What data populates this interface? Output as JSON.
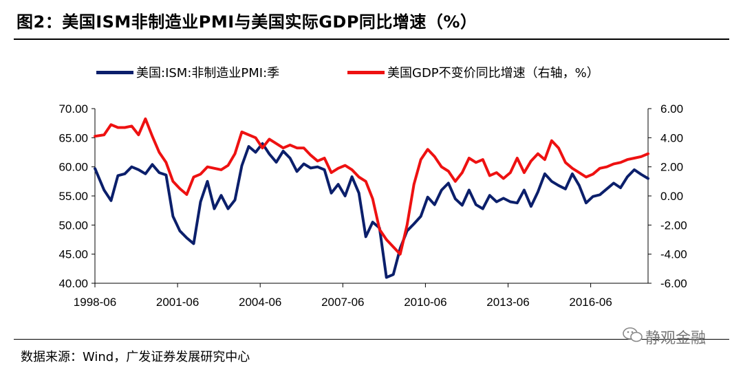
{
  "header": {
    "title": "图2：美国ISM非制造业PMI与美国实际GDP同比增速（%）"
  },
  "footer": {
    "source": "数据来源：Wind，广发证券发展研究中心",
    "watermark": "静观金融"
  },
  "colors": {
    "pmi": "#0b1f6b",
    "gdp": "#ee1111",
    "axis": "#000000"
  },
  "chart_data": {
    "type": "line",
    "title": "",
    "xlabel": "",
    "x_tick_labels": [
      "1998-06",
      "2001-06",
      "2004-06",
      "2007-06",
      "2010-06",
      "2013-06",
      "2016-06"
    ],
    "x_tick_years": [
      1998.4167,
      2001.4167,
      2004.4167,
      2007.4167,
      2010.4167,
      2013.4167,
      2016.4167
    ],
    "x_range": [
      1998.4167,
      2018.5
    ],
    "y_left": {
      "range": [
        40,
        70
      ],
      "ticks": [
        "40.00",
        "45.00",
        "50.00",
        "55.00",
        "60.00",
        "65.00",
        "70.00"
      ],
      "tick_values": [
        40,
        45,
        50,
        55,
        60,
        65,
        70
      ]
    },
    "y_right": {
      "range": [
        -6,
        6
      ],
      "ticks": [
        "-6.00",
        "-4.00",
        "-2.00",
        "0.00",
        "2.00",
        "4.00",
        "6.00"
      ],
      "tick_values": [
        -6,
        -4,
        -2,
        0,
        2,
        4,
        6
      ]
    },
    "legend_placement": "top",
    "grid": false,
    "series": [
      {
        "name": "美国:ISM:非制造业PMI:季",
        "axis": "left",
        "points": [
          [
            1998.42,
            59.7
          ],
          [
            1998.75,
            56.0
          ],
          [
            1999.0,
            54.2
          ],
          [
            1999.25,
            58.5
          ],
          [
            1999.5,
            58.8
          ],
          [
            1999.75,
            60.0
          ],
          [
            2000.0,
            59.5
          ],
          [
            2000.25,
            58.8
          ],
          [
            2000.5,
            60.4
          ],
          [
            2000.75,
            59.0
          ],
          [
            2001.0,
            58.6
          ],
          [
            2001.25,
            51.5
          ],
          [
            2001.5,
            49.0
          ],
          [
            2001.75,
            47.8
          ],
          [
            2002.0,
            46.8
          ],
          [
            2002.25,
            54.0
          ],
          [
            2002.5,
            57.5
          ],
          [
            2002.75,
            52.8
          ],
          [
            2003.0,
            55.1
          ],
          [
            2003.25,
            52.8
          ],
          [
            2003.5,
            54.3
          ],
          [
            2003.75,
            60.2
          ],
          [
            2004.0,
            63.5
          ],
          [
            2004.25,
            62.5
          ],
          [
            2004.5,
            64.0
          ],
          [
            2004.75,
            62.2
          ],
          [
            2005.0,
            60.8
          ],
          [
            2005.25,
            62.7
          ],
          [
            2005.5,
            61.5
          ],
          [
            2005.75,
            59.2
          ],
          [
            2006.0,
            60.5
          ],
          [
            2006.25,
            59.8
          ],
          [
            2006.5,
            60.0
          ],
          [
            2006.75,
            59.5
          ],
          [
            2007.0,
            55.5
          ],
          [
            2007.25,
            57.0
          ],
          [
            2007.5,
            55.0
          ],
          [
            2007.75,
            58.3
          ],
          [
            2008.0,
            55.5
          ],
          [
            2008.25,
            48.0
          ],
          [
            2008.5,
            50.5
          ],
          [
            2008.75,
            49.5
          ],
          [
            2009.0,
            41.0
          ],
          [
            2009.25,
            41.5
          ],
          [
            2009.5,
            46.0
          ],
          [
            2009.75,
            49.0
          ],
          [
            2010.0,
            50.2
          ],
          [
            2010.25,
            51.5
          ],
          [
            2010.5,
            54.8
          ],
          [
            2010.75,
            53.5
          ],
          [
            2011.0,
            56.0
          ],
          [
            2011.25,
            57.2
          ],
          [
            2011.5,
            54.5
          ],
          [
            2011.75,
            53.4
          ],
          [
            2012.0,
            56.0
          ],
          [
            2012.25,
            53.5
          ],
          [
            2012.5,
            52.8
          ],
          [
            2012.75,
            55.1
          ],
          [
            2013.0,
            54.0
          ],
          [
            2013.25,
            54.6
          ],
          [
            2013.5,
            54.0
          ],
          [
            2013.75,
            53.8
          ],
          [
            2014.0,
            56.0
          ],
          [
            2014.25,
            53.2
          ],
          [
            2014.5,
            55.7
          ],
          [
            2014.75,
            58.8
          ],
          [
            2015.0,
            57.5
          ],
          [
            2015.25,
            56.8
          ],
          [
            2015.5,
            56.2
          ],
          [
            2015.75,
            58.8
          ],
          [
            2016.0,
            56.8
          ],
          [
            2016.25,
            53.8
          ],
          [
            2016.5,
            54.9
          ],
          [
            2016.75,
            55.2
          ],
          [
            2017.0,
            56.2
          ],
          [
            2017.25,
            57.2
          ],
          [
            2017.5,
            56.4
          ],
          [
            2017.75,
            58.3
          ],
          [
            2018.0,
            59.5
          ],
          [
            2018.25,
            58.7
          ],
          [
            2018.5,
            58.0
          ]
        ]
      },
      {
        "name": "美国GDP不变价同比增速（右轴，%）",
        "axis": "right",
        "points": [
          [
            1998.42,
            4.1
          ],
          [
            1998.75,
            4.2
          ],
          [
            1999.0,
            4.9
          ],
          [
            1999.25,
            4.7
          ],
          [
            1999.5,
            4.7
          ],
          [
            1999.75,
            4.8
          ],
          [
            2000.0,
            4.2
          ],
          [
            2000.25,
            5.3
          ],
          [
            2000.5,
            4.1
          ],
          [
            2000.75,
            3.0
          ],
          [
            2001.0,
            2.3
          ],
          [
            2001.25,
            1.0
          ],
          [
            2001.5,
            0.5
          ],
          [
            2001.75,
            0.1
          ],
          [
            2002.0,
            1.3
          ],
          [
            2002.25,
            1.5
          ],
          [
            2002.5,
            2.0
          ],
          [
            2002.75,
            1.9
          ],
          [
            2003.0,
            1.8
          ],
          [
            2003.25,
            2.1
          ],
          [
            2003.5,
            2.9
          ],
          [
            2003.75,
            4.4
          ],
          [
            2004.0,
            4.2
          ],
          [
            2004.25,
            4.0
          ],
          [
            2004.5,
            3.3
          ],
          [
            2004.75,
            3.9
          ],
          [
            2005.0,
            3.6
          ],
          [
            2005.25,
            3.3
          ],
          [
            2005.5,
            3.5
          ],
          [
            2005.75,
            3.3
          ],
          [
            2006.0,
            3.3
          ],
          [
            2006.25,
            2.8
          ],
          [
            2006.5,
            2.4
          ],
          [
            2006.75,
            2.6
          ],
          [
            2007.0,
            1.6
          ],
          [
            2007.25,
            1.9
          ],
          [
            2007.5,
            2.1
          ],
          [
            2007.75,
            1.8
          ],
          [
            2008.0,
            1.3
          ],
          [
            2008.25,
            1.0
          ],
          [
            2008.5,
            -0.2
          ],
          [
            2008.75,
            -2.3
          ],
          [
            2009.0,
            -3.0
          ],
          [
            2009.25,
            -3.5
          ],
          [
            2009.5,
            -4.0
          ],
          [
            2009.75,
            -2.0
          ],
          [
            2010.0,
            0.8
          ],
          [
            2010.25,
            2.5
          ],
          [
            2010.5,
            3.2
          ],
          [
            2010.75,
            2.7
          ],
          [
            2011.0,
            2.0
          ],
          [
            2011.25,
            1.7
          ],
          [
            2011.5,
            1.0
          ],
          [
            2011.75,
            1.6
          ],
          [
            2012.0,
            2.6
          ],
          [
            2012.25,
            2.3
          ],
          [
            2012.5,
            2.5
          ],
          [
            2012.75,
            1.4
          ],
          [
            2013.0,
            1.6
          ],
          [
            2013.25,
            1.2
          ],
          [
            2013.5,
            1.6
          ],
          [
            2013.75,
            2.6
          ],
          [
            2014.0,
            1.6
          ],
          [
            2014.25,
            2.4
          ],
          [
            2014.5,
            2.9
          ],
          [
            2014.75,
            2.5
          ],
          [
            2015.0,
            3.8
          ],
          [
            2015.25,
            3.3
          ],
          [
            2015.5,
            2.3
          ],
          [
            2015.75,
            1.9
          ],
          [
            2016.0,
            1.6
          ],
          [
            2016.25,
            1.3
          ],
          [
            2016.5,
            1.5
          ],
          [
            2016.75,
            1.9
          ],
          [
            2017.0,
            2.0
          ],
          [
            2017.25,
            2.2
          ],
          [
            2017.5,
            2.3
          ],
          [
            2017.75,
            2.5
          ],
          [
            2018.0,
            2.6
          ],
          [
            2018.25,
            2.7
          ],
          [
            2018.5,
            2.9
          ]
        ]
      }
    ]
  }
}
